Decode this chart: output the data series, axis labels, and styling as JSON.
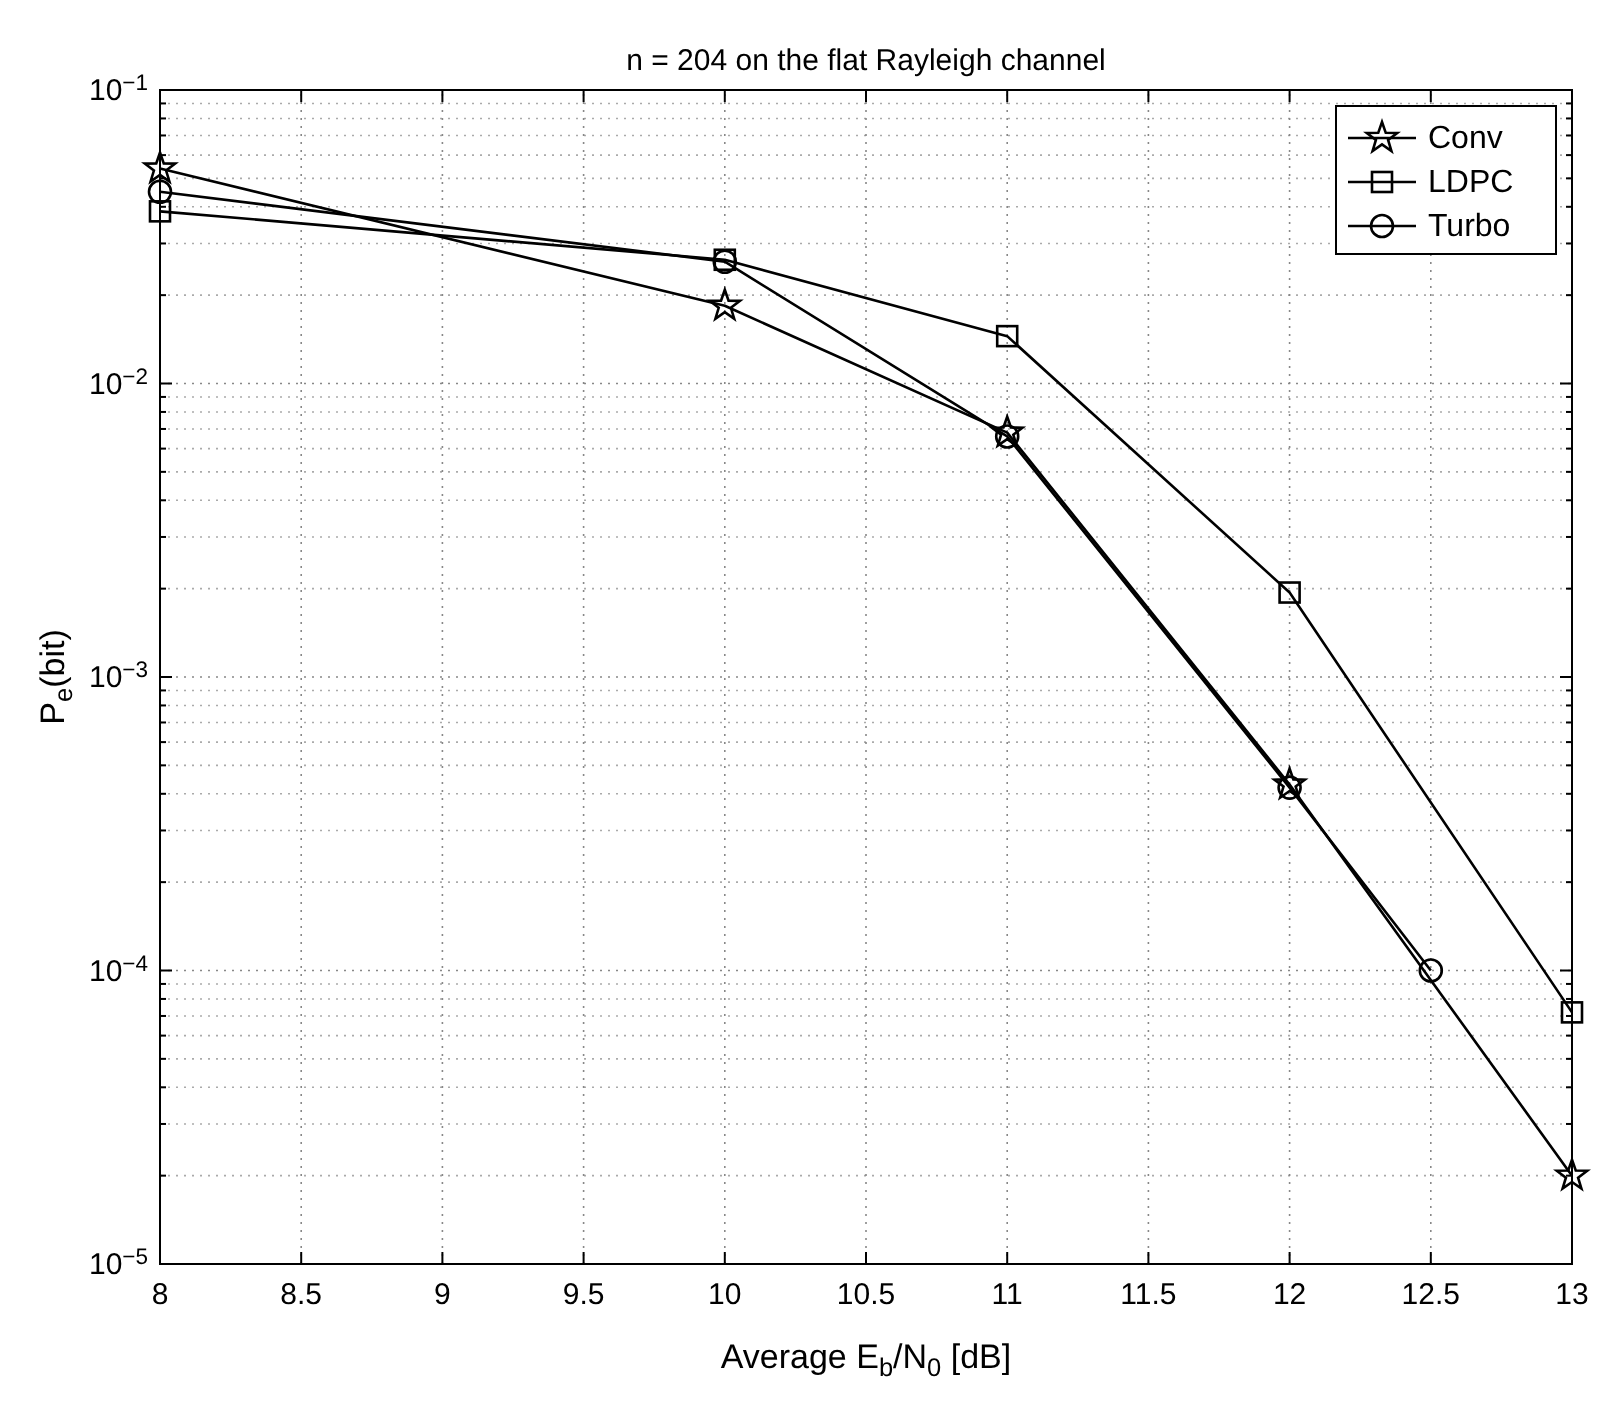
{
  "chart_data": {
    "type": "line",
    "title": "n = 204 on the flat Rayleigh channel",
    "xlabel": "Average E$_{b}$/N$_{0}$ [dB]",
    "ylabel": "P$_{e}$(bit)",
    "log": "y",
    "grid": true,
    "legend": "top right",
    "line_style": "solid",
    "xlim": [
      8,
      13
    ],
    "xticks": [
      8,
      8.5,
      9,
      9.5,
      10,
      10.5,
      11,
      11.5,
      12,
      12.5,
      13
    ],
    "ylim": [
      1e-05,
      0.1
    ],
    "yticks": [
      {
        "value": 1e-05,
        "label": "10$^{−5}$"
      },
      {
        "value": 0.0001,
        "label": "10$^{−4}$"
      },
      {
        "value": 0.001,
        "label": "10$^{−3}$"
      },
      {
        "value": 0.01,
        "label": "10$^{−2}$"
      },
      {
        "value": 0.1,
        "label": "10$^{−1}$"
      }
    ],
    "series": [
      {
        "name": "Conv",
        "color": "#000000",
        "marker": "star",
        "x": [
          8,
          10,
          11,
          12,
          13
        ],
        "values": [
          0.054,
          0.0184,
          0.0068,
          0.00043,
          2e-05
        ]
      },
      {
        "name": "LDPC",
        "color": "#000000",
        "marker": "square",
        "x": [
          8,
          10,
          11,
          12,
          13
        ],
        "values": [
          0.0386,
          0.0264,
          0.0145,
          0.00194,
          7.2e-05
        ]
      },
      {
        "name": "Turbo",
        "color": "#000000",
        "marker": "circle",
        "x": [
          8,
          10,
          11,
          12,
          12.5
        ],
        "values": [
          0.045,
          0.026,
          0.0066,
          0.00042,
          0.0001
        ]
      }
    ]
  }
}
